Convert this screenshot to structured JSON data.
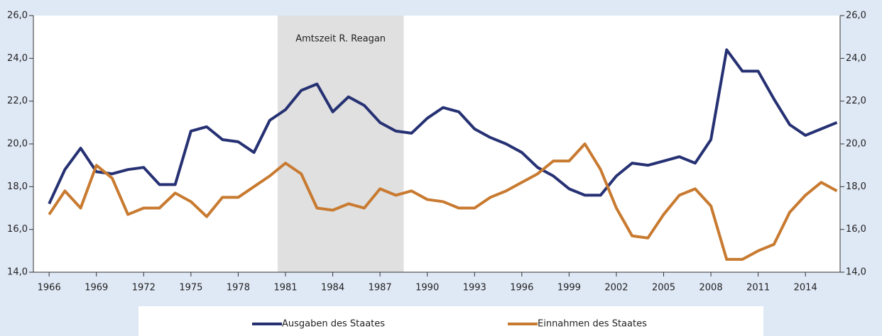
{
  "chart_data": {
    "type": "line",
    "x": [
      1966,
      1967,
      1968,
      1969,
      1970,
      1971,
      1972,
      1973,
      1974,
      1975,
      1976,
      1977,
      1978,
      1979,
      1980,
      1981,
      1982,
      1983,
      1984,
      1985,
      1986,
      1987,
      1988,
      1989,
      1990,
      1991,
      1992,
      1993,
      1994,
      1995,
      1996,
      1997,
      1998,
      1999,
      2000,
      2001,
      2002,
      2003,
      2004,
      2005,
      2006,
      2007,
      2008,
      2009,
      2010,
      2011,
      2012,
      2013,
      2014,
      2015,
      2016
    ],
    "series": [
      {
        "name": "Ausgaben des Staates",
        "color": "#263173",
        "values": [
          17.2,
          18.8,
          19.8,
          18.7,
          18.6,
          18.8,
          18.9,
          18.1,
          18.1,
          20.6,
          20.8,
          20.2,
          20.1,
          19.6,
          21.1,
          21.6,
          22.5,
          22.8,
          21.5,
          22.2,
          21.8,
          21.0,
          20.6,
          20.5,
          21.2,
          21.7,
          21.5,
          20.7,
          20.3,
          20.0,
          19.6,
          18.9,
          18.5,
          17.9,
          17.6,
          17.6,
          18.5,
          19.1,
          19.0,
          19.2,
          19.4,
          19.1,
          20.2,
          24.4,
          23.4,
          23.4,
          22.1,
          20.9,
          20.4,
          20.7,
          21.0
        ]
      },
      {
        "name": "Einnahmen des Staates",
        "color": "#c87a30",
        "values": [
          16.7,
          17.8,
          17.0,
          19.0,
          18.4,
          16.7,
          17.0,
          17.0,
          17.7,
          17.3,
          16.6,
          17.5,
          17.5,
          18.0,
          18.5,
          19.1,
          18.6,
          17.0,
          16.9,
          17.2,
          17.0,
          17.9,
          17.6,
          17.8,
          17.4,
          17.3,
          17.0,
          17.0,
          17.5,
          17.8,
          18.2,
          18.6,
          19.2,
          19.2,
          20.0,
          18.8,
          17.0,
          15.7,
          15.6,
          16.7,
          17.6,
          17.9,
          17.1,
          14.6,
          14.6,
          15.0,
          15.3,
          16.8,
          17.6,
          18.2,
          17.8
        ]
      }
    ],
    "xlim": [
      1965,
      2016.2
    ],
    "xticks": [
      1966,
      1969,
      1972,
      1975,
      1978,
      1981,
      1984,
      1987,
      1990,
      1993,
      1996,
      1999,
      2002,
      2005,
      2008,
      2011,
      2014
    ],
    "ylim": [
      14,
      26
    ],
    "yticks": [
      {
        "value": 14,
        "label": "14,0"
      },
      {
        "value": 16,
        "label": "16,0"
      },
      {
        "value": 18,
        "label": "18,0"
      },
      {
        "value": 20,
        "label": "20,0"
      },
      {
        "value": 22,
        "label": "22,0"
      },
      {
        "value": 24,
        "label": "24,0"
      },
      {
        "value": 26,
        "label": "26,0"
      }
    ],
    "y2lim": [
      14,
      26
    ],
    "y2ticks": [
      {
        "value": 14,
        "label": "14,0"
      },
      {
        "value": 16,
        "label": "16,0"
      },
      {
        "value": 18,
        "label": "18,0"
      },
      {
        "value": 20,
        "label": "20,0"
      },
      {
        "value": 22,
        "label": "22,0"
      },
      {
        "value": 24,
        "label": "24,0"
      },
      {
        "value": 26,
        "label": "26,0"
      }
    ],
    "shade": {
      "label": "Amtszeit R. Reagan",
      "x": [
        1980.5,
        1988.5
      ]
    }
  }
}
